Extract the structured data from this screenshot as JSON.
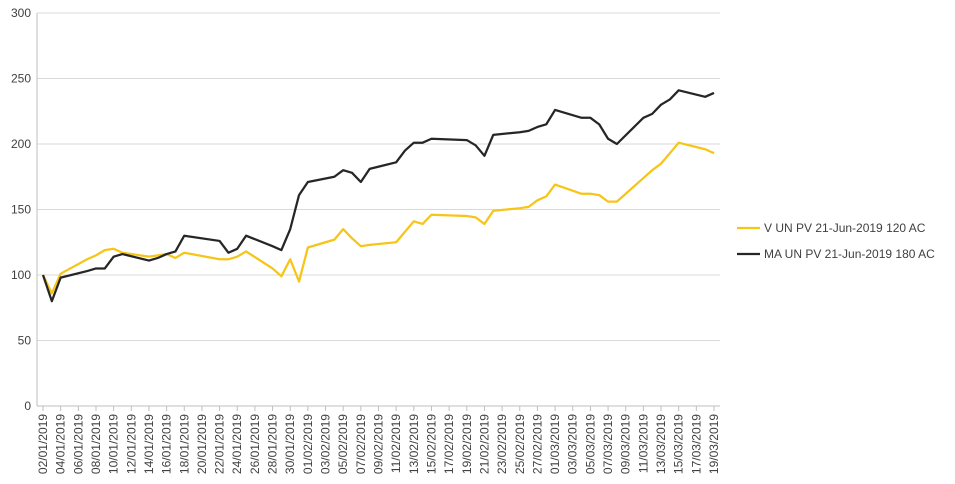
{
  "chart_data": {
    "type": "line",
    "x": [
      "02/01/2019",
      "03/01/2019",
      "04/01/2019",
      "07/01/2019",
      "08/01/2019",
      "09/01/2019",
      "10/01/2019",
      "11/01/2019",
      "14/01/2019",
      "15/01/2019",
      "16/01/2019",
      "17/01/2019",
      "18/01/2019",
      "22/01/2019",
      "23/01/2019",
      "24/01/2019",
      "25/01/2019",
      "28/01/2019",
      "29/01/2019",
      "30/01/2019",
      "31/01/2019",
      "01/02/2019",
      "04/02/2019",
      "05/02/2019",
      "06/02/2019",
      "07/02/2019",
      "08/02/2019",
      "11/02/2019",
      "12/02/2019",
      "13/02/2019",
      "14/02/2019",
      "15/02/2019",
      "19/02/2019",
      "20/02/2019",
      "21/02/2019",
      "22/02/2019",
      "25/02/2019",
      "26/02/2019",
      "27/02/2019",
      "28/02/2019",
      "01/03/2019",
      "04/03/2019",
      "05/03/2019",
      "06/03/2019",
      "07/03/2019",
      "08/03/2019",
      "11/03/2019",
      "12/03/2019",
      "13/03/2019",
      "14/03/2019",
      "15/03/2019",
      "18/03/2019",
      "19/03/2019"
    ],
    "series": [
      {
        "name": "V UN PV 21-Jun-2019 120 AC",
        "color": "#f5c518",
        "values": [
          100,
          86,
          101,
          112,
          115,
          119,
          120,
          117,
          114,
          115,
          116,
          113,
          117,
          112,
          112,
          114,
          118,
          105,
          99,
          112,
          95,
          121,
          127,
          135,
          128,
          122,
          123,
          125,
          133,
          141,
          139,
          146,
          145,
          144,
          139,
          149,
          151,
          152,
          157,
          160,
          169,
          162,
          162,
          161,
          156,
          156,
          174,
          180,
          185,
          193,
          201,
          196,
          193
        ]
      },
      {
        "name": "MA UN PV 21-Jun-2019 180 AC",
        "color": "#262626",
        "values": [
          100,
          80,
          98,
          103,
          105,
          105,
          114,
          116,
          111,
          113,
          116,
          118,
          130,
          126,
          117,
          120,
          130,
          122,
          119,
          135,
          161,
          171,
          175,
          180,
          178,
          171,
          181,
          186,
          195,
          201,
          201,
          204,
          203,
          199,
          191,
          207,
          209,
          210,
          213,
          215,
          226,
          220,
          220,
          215,
          204,
          200,
          220,
          223,
          230,
          234,
          241,
          236,
          239
        ]
      }
    ],
    "xlim": [
      "02/01/2019",
      "19/03/2019"
    ],
    "xticks": [
      "02/01/2019",
      "04/01/2019",
      "06/01/2019",
      "08/01/2019",
      "10/01/2019",
      "12/01/2019",
      "14/01/2019",
      "16/01/2019",
      "18/01/2019",
      "20/01/2019",
      "22/01/2019",
      "24/01/2019",
      "26/01/2019",
      "28/01/2019",
      "30/01/2019",
      "01/02/2019",
      "03/02/2019",
      "05/02/2019",
      "07/02/2019",
      "09/02/2019",
      "11/02/2019",
      "13/02/2019",
      "15/02/2019",
      "17/02/2019",
      "19/02/2019",
      "21/02/2019",
      "23/02/2019",
      "25/02/2019",
      "27/02/2019",
      "01/03/2019",
      "03/03/2019",
      "05/03/2019",
      "07/03/2019",
      "09/03/2019",
      "11/03/2019",
      "13/03/2019",
      "15/03/2019",
      "17/03/2019",
      "19/03/2019"
    ],
    "ylim": [
      0,
      300
    ],
    "yticks": [
      0,
      50,
      100,
      150,
      200,
      250,
      300
    ],
    "grid": true,
    "legend": "right"
  }
}
